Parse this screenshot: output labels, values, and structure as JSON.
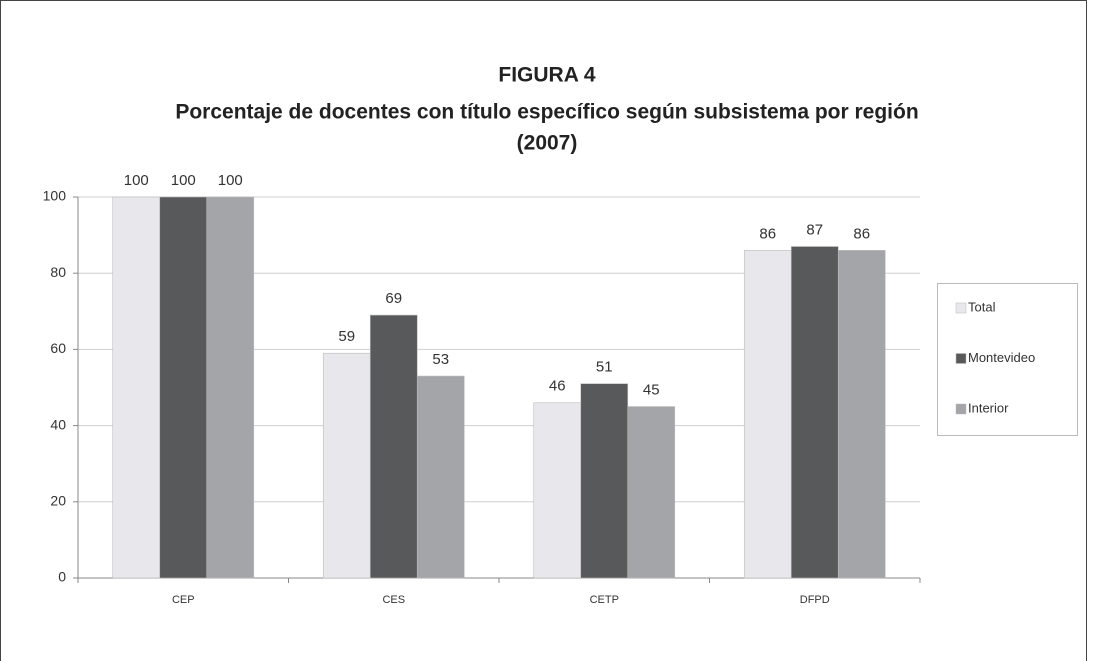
{
  "chart_data": {
    "type": "bar",
    "title_lines": [
      "FIGURA 4",
      "Porcentaje de docentes con título específico según subsistema por región",
      "(2007)"
    ],
    "categories": [
      "CEP",
      "CES",
      "CETP",
      "DFPD"
    ],
    "series": [
      {
        "name": "Total",
        "color": "#e8e8ec",
        "values": [
          100,
          59,
          46,
          86
        ]
      },
      {
        "name": "Montevideo",
        "color": "#58595b",
        "values": [
          100,
          69,
          51,
          87
        ]
      },
      {
        "name": "Interior",
        "color": "#a3a5a8",
        "values": [
          100,
          53,
          45,
          86
        ]
      }
    ],
    "ylim": [
      0,
      100
    ],
    "yticks": [
      0,
      20,
      40,
      60,
      80,
      100
    ],
    "grid": true,
    "legend": "right"
  }
}
